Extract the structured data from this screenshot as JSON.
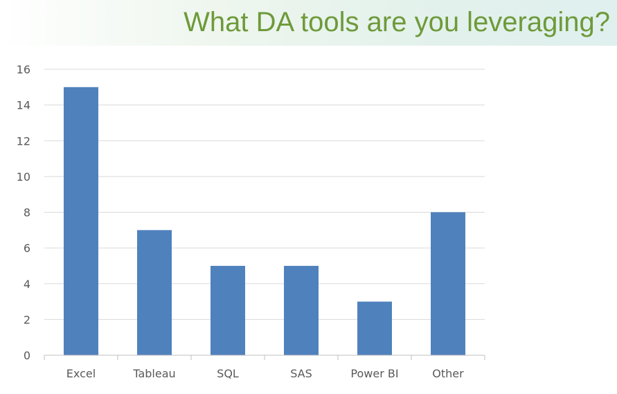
{
  "slide": {
    "title": "What DA tools are you leveraging?"
  },
  "colors": {
    "bar": "#4f81bd",
    "title": "#6e9a3a",
    "gridline": "#d9d9d9",
    "axis": "#bfbfbf",
    "label": "#595959"
  },
  "chart_data": {
    "type": "bar",
    "categories": [
      "Excel",
      "Tableau",
      "SQL",
      "SAS",
      "Power BI",
      "Other"
    ],
    "values": [
      15,
      7,
      5,
      5,
      3,
      8
    ],
    "title": "",
    "xlabel": "",
    "ylabel": "",
    "ylim": [
      0,
      16
    ],
    "yticks": [
      0,
      2,
      4,
      6,
      8,
      10,
      12,
      14,
      16
    ],
    "grid": true,
    "legend": "none"
  }
}
